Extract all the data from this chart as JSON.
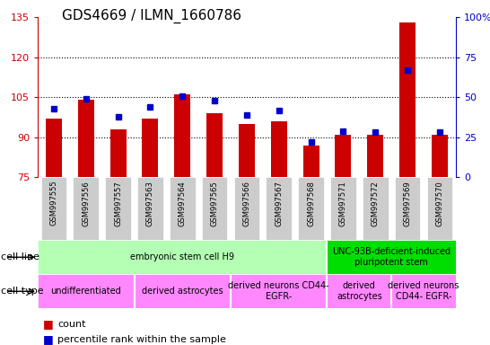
{
  "title": "GDS4669 / ILMN_1660786",
  "samples": [
    "GSM997555",
    "GSM997556",
    "GSM997557",
    "GSM997563",
    "GSM997564",
    "GSM997565",
    "GSM997566",
    "GSM997567",
    "GSM997568",
    "GSM997571",
    "GSM997572",
    "GSM997569",
    "GSM997570"
  ],
  "counts": [
    97,
    104,
    93,
    97,
    106,
    99,
    95,
    96,
    87,
    91,
    91,
    133,
    91
  ],
  "percentiles": [
    43,
    49,
    38,
    44,
    51,
    48,
    39,
    42,
    22,
    29,
    28,
    67,
    28
  ],
  "ylim_left": [
    75,
    135
  ],
  "ylim_right": [
    0,
    100
  ],
  "yticks_left": [
    75,
    90,
    105,
    120,
    135
  ],
  "yticks_right": [
    0,
    25,
    50,
    75,
    100
  ],
  "bar_color": "#cc0000",
  "dot_color": "#0000cc",
  "bar_bottom": 75,
  "cell_line_groups": [
    {
      "label": "embryonic stem cell H9",
      "start": 0,
      "end": 9,
      "color": "#b3ffb3"
    },
    {
      "label": "UNC-93B-deficient-induced\npluripotent stem",
      "start": 9,
      "end": 13,
      "color": "#00dd00"
    }
  ],
  "cell_type_groups": [
    {
      "label": "undifferentiated",
      "start": 0,
      "end": 3,
      "color": "#ff88ff"
    },
    {
      "label": "derived astrocytes",
      "start": 3,
      "end": 6,
      "color": "#ff88ff"
    },
    {
      "label": "derived neurons CD44-\nEGFR-",
      "start": 6,
      "end": 9,
      "color": "#ff88ff"
    },
    {
      "label": "derived\nastrocytes",
      "start": 9,
      "end": 11,
      "color": "#ff88ff"
    },
    {
      "label": "derived neurons\nCD44- EGFR-",
      "start": 11,
      "end": 13,
      "color": "#ff88ff"
    }
  ],
  "left_axis_color": "#cc0000",
  "right_axis_color": "#0000cc",
  "grid_color": "#000000",
  "sample_bg_color": "#cccccc",
  "title_fontsize": 11,
  "tick_fontsize": 8,
  "legend_fontsize": 8,
  "sample_fontsize": 6,
  "table_fontsize": 7
}
